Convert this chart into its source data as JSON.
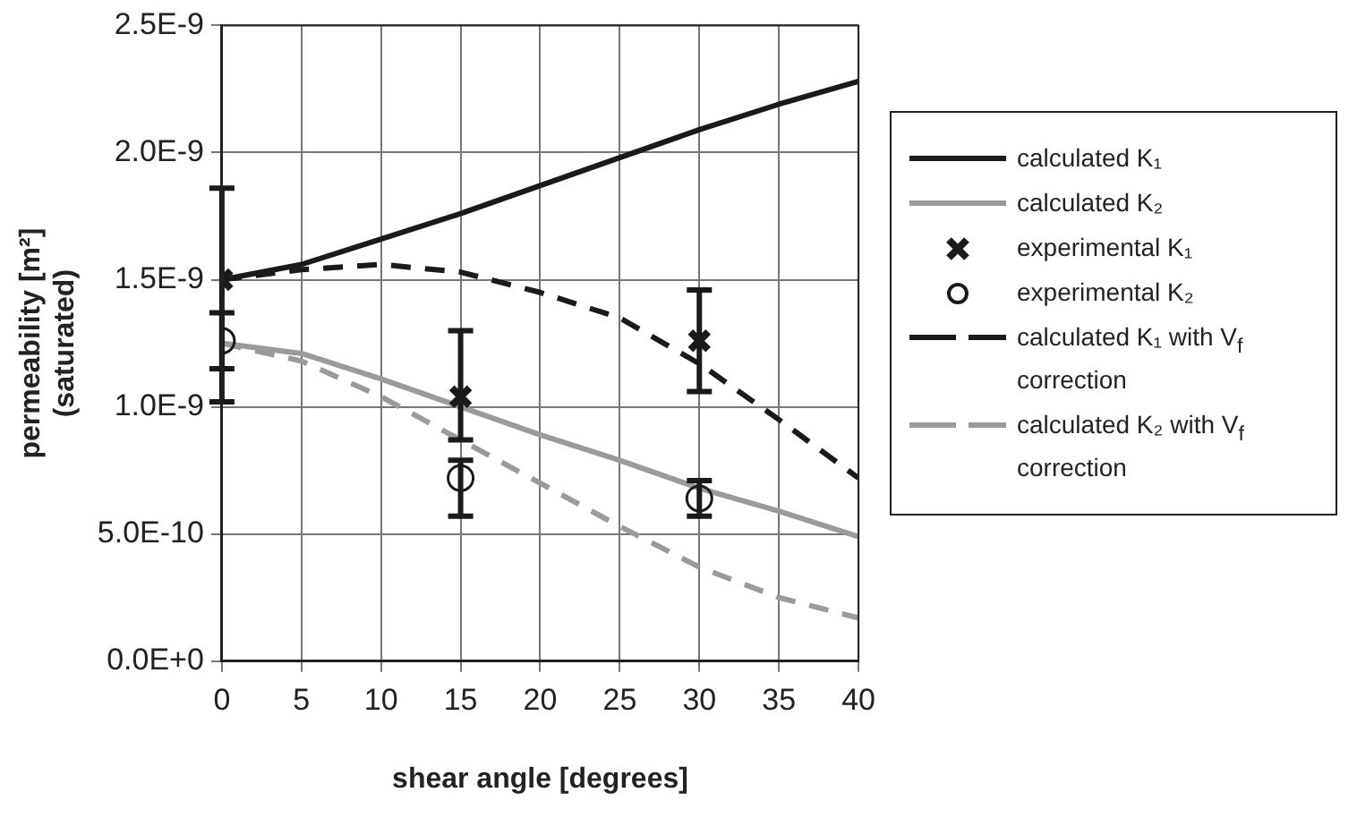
{
  "chart_data": {
    "type": "line",
    "xlabel": "shear angle [degrees]",
    "ylabel": "permeability [m²]\n(saturated)",
    "xlim": [
      0,
      40
    ],
    "xticks": [
      0,
      5,
      10,
      15,
      20,
      25,
      30,
      35,
      40
    ],
    "ylim": [
      0,
      2.5e-09
    ],
    "yticks": [
      {
        "value": 0,
        "label": "0.0E+0"
      },
      {
        "value": 5e-10,
        "label": "5.0E-10"
      },
      {
        "value": 1e-09,
        "label": "1.0E-9"
      },
      {
        "value": 1.5e-09,
        "label": "1.5E-9"
      },
      {
        "value": 2e-09,
        "label": "2.0E-9"
      },
      {
        "value": 2.5e-09,
        "label": "2.5E-9"
      }
    ],
    "grid": true,
    "legend": "right",
    "series": [
      {
        "name": "calculated K₁",
        "type": "line",
        "color": "#1a1a1a",
        "line_style": "solid",
        "marker": "none",
        "x": [
          0,
          5,
          10,
          15,
          20,
          25,
          30,
          35,
          40
        ],
        "values": [
          1.5e-09,
          1.56e-09,
          1.66e-09,
          1.76e-09,
          1.87e-09,
          1.98e-09,
          2.09e-09,
          2.19e-09,
          2.28e-09
        ]
      },
      {
        "name": "calculated K₂",
        "type": "line",
        "color": "#9a9a9a",
        "line_style": "solid",
        "marker": "none",
        "x": [
          0,
          5,
          10,
          15,
          20,
          25,
          30,
          35,
          40
        ],
        "values": [
          1.25e-09,
          1.21e-09,
          1.11e-09,
          1e-09,
          8.9e-10,
          7.9e-10,
          6.8e-10,
          5.9e-10,
          4.9e-10
        ]
      },
      {
        "name": "experimental K₁",
        "type": "scatter",
        "color": "#1a1a1a",
        "marker": "cross",
        "x": [
          0,
          15,
          30
        ],
        "values": [
          1.5e-09,
          1.04e-09,
          1.26e-09
        ],
        "errors": [
          [
            1.02e-09,
            1.86e-09
          ],
          [
            8.7e-10,
            1.3e-09
          ],
          [
            1.06e-09,
            1.46e-09
          ]
        ]
      },
      {
        "name": "experimental K₂",
        "type": "scatter",
        "color": "#1a1a1a",
        "marker": "circle",
        "x": [
          0,
          15,
          30
        ],
        "values": [
          1.26e-09,
          7.2e-10,
          6.4e-10
        ],
        "errors": [
          [
            1.15e-09,
            1.37e-09
          ],
          [
            5.7e-10,
            7.9e-10
          ],
          [
            5.7e-10,
            7.1e-10
          ]
        ]
      },
      {
        "name": "calculated K₁ with V$_{f}$ correction",
        "type": "line",
        "color": "#1a1a1a",
        "line_style": "dashed",
        "marker": "none",
        "x": [
          0,
          5,
          10,
          15,
          20,
          25,
          30,
          35,
          40
        ],
        "values": [
          1.5e-09,
          1.54e-09,
          1.56e-09,
          1.53e-09,
          1.45e-09,
          1.35e-09,
          1.17e-09,
          9.5e-10,
          7.2e-10
        ]
      },
      {
        "name": "calculated K₂ with V$_{f}$ correction",
        "type": "line",
        "color": "#9a9a9a",
        "line_style": "dashed",
        "marker": "none",
        "x": [
          0,
          5,
          10,
          15,
          20,
          25,
          30,
          35,
          40
        ],
        "values": [
          1.25e-09,
          1.18e-09,
          1.04e-09,
          8.7e-10,
          7e-10,
          5.3e-10,
          3.7e-10,
          2.5e-10,
          1.7e-10
        ]
      }
    ]
  }
}
